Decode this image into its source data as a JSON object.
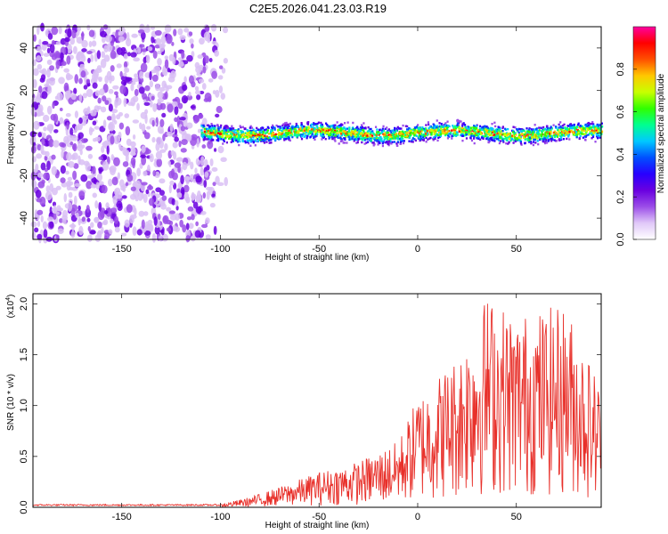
{
  "title": "C2E5.2026.041.23.03.R19",
  "chart_data": [
    {
      "type": "heatmap",
      "xlabel": "Height of straight line (km)",
      "ylabel": "Frequency (Hz)",
      "xlim": [
        -195,
        93
      ],
      "ylim": [
        -50,
        50
      ],
      "x_ticks": [
        -150,
        -100,
        -50,
        0,
        50
      ],
      "y_ticks": [
        -40,
        -20,
        0,
        20,
        40
      ],
      "colorbar": {
        "label": "Normalized spectral amplitude",
        "range": [
          0,
          1
        ],
        "ticks": [
          "0.0",
          "0.2",
          "0.4",
          "0.6",
          "0.8"
        ],
        "tick_values": [
          0.0,
          0.2,
          0.4,
          0.6,
          0.8
        ],
        "colors": [
          "#ffffff",
          "#e0c8f8",
          "#9b4de8",
          "#6a00e0",
          "#2800ff",
          "#0050ff",
          "#00c8ff",
          "#00ff90",
          "#30ff00",
          "#c8ff00",
          "#ffc800",
          "#ff5000",
          "#ff0000",
          "#ff00a0"
        ]
      },
      "regions": [
        {
          "x_range": [
            -195,
            -100
          ],
          "freq_range": [
            -50,
            50
          ],
          "amplitude": "low",
          "description_level": 0.1
        },
        {
          "x_range": [
            -110,
            93
          ],
          "freq_center": 0,
          "freq_halfwidth": 4,
          "amplitude_peak": 1.0
        }
      ],
      "band_center_hz": 0
    },
    {
      "type": "line",
      "xlabel": "Height of straight line (km)",
      "ylabel": "SNR (10 * v/v)",
      "multiplier": "(x10",
      "multiplier_exp": "4",
      "multiplier_close": ")",
      "xlim": [
        -195,
        93
      ],
      "ylim": [
        0,
        2.1
      ],
      "x_ticks": [
        -150,
        -100,
        -50,
        0,
        50
      ],
      "y_ticks": [
        "0.0",
        "0.5",
        "1.0",
        "1.5",
        "2.0"
      ],
      "y_tick_values": [
        0.0,
        0.5,
        1.0,
        1.5,
        2.0
      ],
      "series": [
        {
          "color": "#e8302a",
          "envelope": [
            {
              "x": -195,
              "y": 0.02
            },
            {
              "x": -100,
              "y": 0.03
            },
            {
              "x": -85,
              "y": 0.1
            },
            {
              "x": -70,
              "y": 0.2
            },
            {
              "x": -50,
              "y": 0.35
            },
            {
              "x": -30,
              "y": 0.45
            },
            {
              "x": -10,
              "y": 0.65
            },
            {
              "x": 0,
              "y": 1.1
            },
            {
              "x": 20,
              "y": 1.5
            },
            {
              "x": 35,
              "y": 2.1
            },
            {
              "x": 50,
              "y": 1.9
            },
            {
              "x": 75,
              "y": 2.0
            },
            {
              "x": 93,
              "y": 1.2
            }
          ]
        }
      ]
    }
  ]
}
